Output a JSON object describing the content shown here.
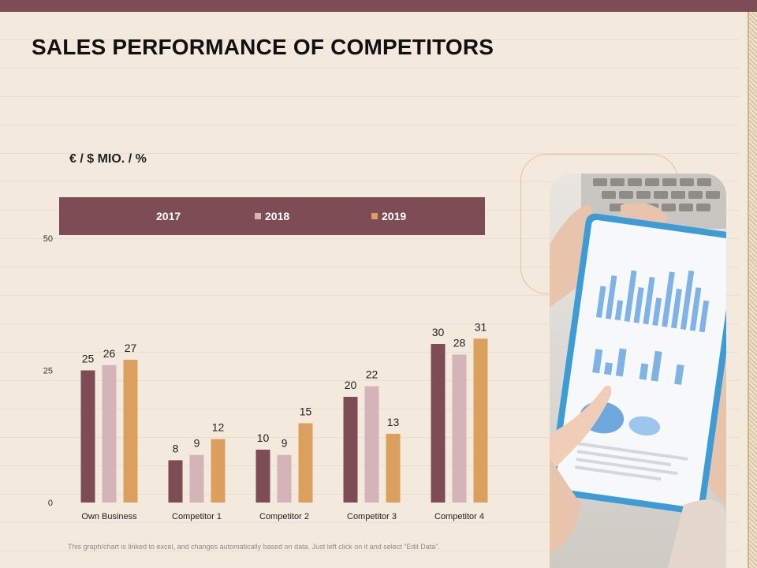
{
  "slide": {
    "title": "SALES PERFORMANCE OF COMPETITORS",
    "unit_label": "€ / $ MIO. / %",
    "footnote": "This graph/chart is linked to excel, and changes automatically based on data. Just left click on it and select “Edit Data”."
  },
  "colors": {
    "primary": "#7e4c54",
    "series_2017": "#7e4c54",
    "series_2018": "#d4b4b8",
    "series_2019": "#dca05e"
  },
  "photo": {
    "description_icon": "tablet-chart-photo"
  },
  "chart_data": {
    "type": "bar",
    "title": "",
    "xlabel": "",
    "ylabel": "€ / $ MIO. / %",
    "ylim": [
      0,
      50
    ],
    "yticks": [
      0,
      25,
      50
    ],
    "categories": [
      "Own Business",
      "Competitor 1",
      "Competitor 2",
      "Competitor 3",
      "Competitor 4"
    ],
    "series": [
      {
        "name": "2017",
        "color": "#7e4c54",
        "values": [
          25,
          8,
          10,
          20,
          30
        ]
      },
      {
        "name": "2018",
        "color": "#d4b4b8",
        "values": [
          26,
          9,
          9,
          22,
          28
        ]
      },
      {
        "name": "2019",
        "color": "#dca05e",
        "values": [
          27,
          12,
          15,
          13,
          31
        ]
      }
    ],
    "legend": "top",
    "grid": false
  }
}
